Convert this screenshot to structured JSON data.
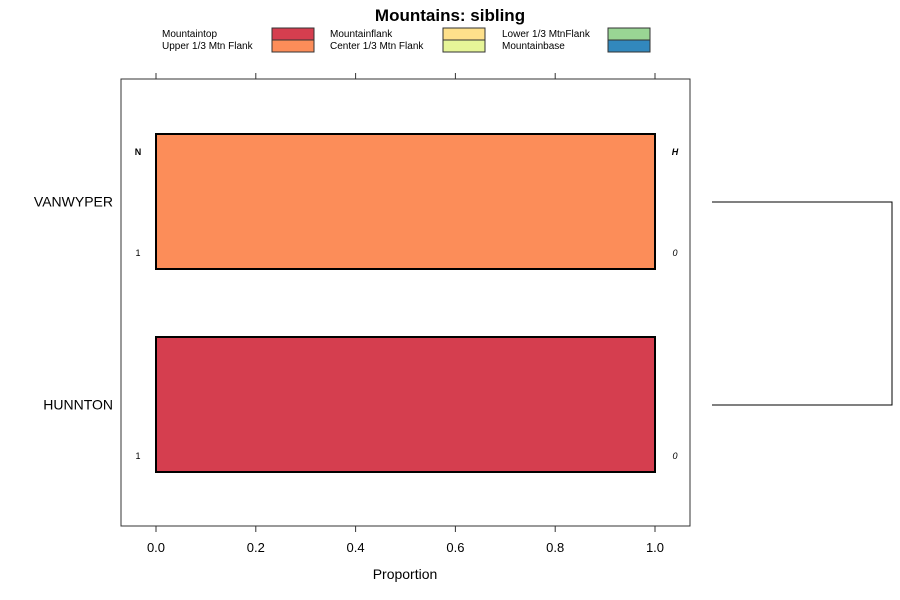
{
  "chart_data": {
    "type": "bar",
    "orientation": "horizontal",
    "stacked": true,
    "title": "Mountains: sibling",
    "xlabel": "Proportion",
    "ylabel": "",
    "xlim": [
      0,
      1
    ],
    "x_ticks": [
      "0.0",
      "0.2",
      "0.4",
      "0.6",
      "0.8",
      "1.0"
    ],
    "x_tick_values": [
      0,
      0.2,
      0.4,
      0.6,
      0.8,
      1.0
    ],
    "categories": [
      "VANWYPER",
      "HUNNTON"
    ],
    "legend": [
      {
        "name": "Mountaintop",
        "color": "#D53E4F"
      },
      {
        "name": "Upper 1/3 Mtn Flank",
        "color": "#FC8D59"
      },
      {
        "name": "Mountainflank",
        "color": "#FEE08B"
      },
      {
        "name": "Center 1/3 Mtn Flank",
        "color": "#E6F598"
      },
      {
        "name": "Lower 1/3 MtnFlank",
        "color": "#99D594"
      },
      {
        "name": "Mountainbase",
        "color": "#3288BD"
      }
    ],
    "legend_placement": "top",
    "series": [
      {
        "name": "Mountaintop",
        "values": [
          0,
          1
        ]
      },
      {
        "name": "Upper 1/3 Mtn Flank",
        "values": [
          1,
          0
        ]
      },
      {
        "name": "Mountainflank",
        "values": [
          0,
          0
        ]
      },
      {
        "name": "Center 1/3 Mtn Flank",
        "values": [
          0,
          0
        ]
      },
      {
        "name": "Lower 1/3 MtnFlank",
        "values": [
          0,
          0
        ]
      },
      {
        "name": "Mountainbase",
        "values": [
          0,
          0
        ]
      }
    ],
    "n_header": "N",
    "h_header": "H",
    "n_values": [
      "1",
      "1"
    ],
    "h_values": [
      "0",
      "0"
    ],
    "dendrogram": true
  }
}
